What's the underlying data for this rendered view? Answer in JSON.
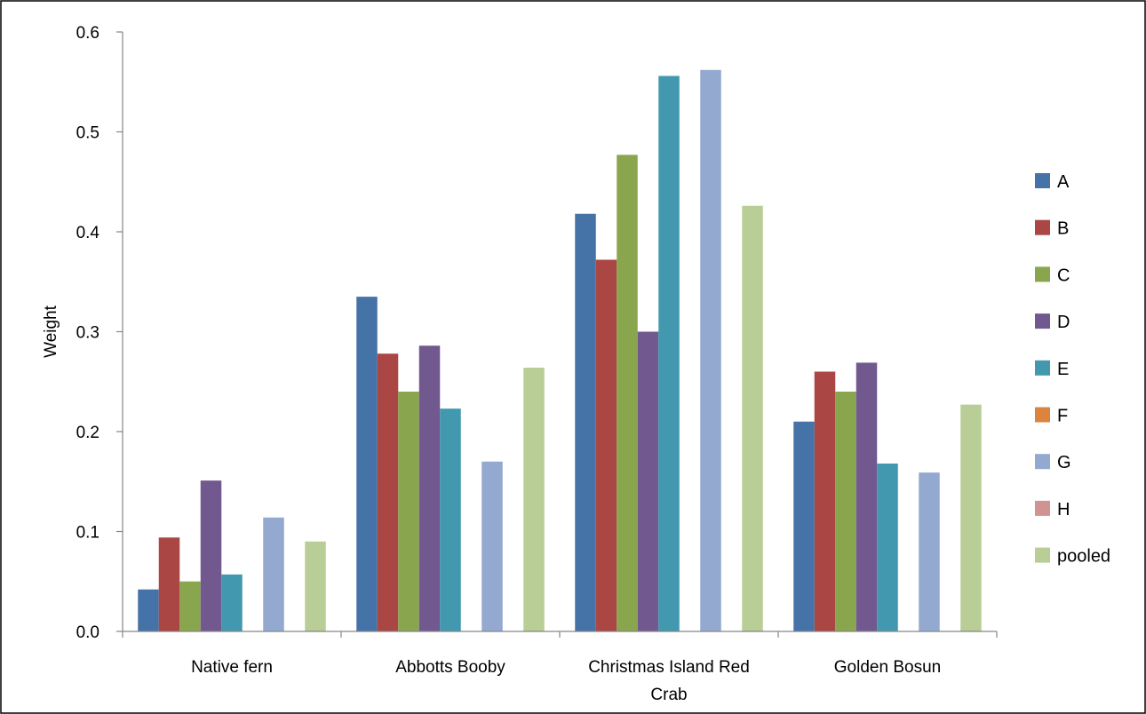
{
  "chart_data": {
    "type": "bar",
    "title": "",
    "xlabel": "",
    "ylabel": "Weight",
    "ylim": [
      0,
      0.6
    ],
    "yticks": [
      "0.0",
      "0.1",
      "0.2",
      "0.3",
      "0.4",
      "0.5",
      "0.6"
    ],
    "grid": false,
    "legend_position": "right",
    "categories": [
      "Native fern",
      "Abbotts Booby",
      "Christmas Island Red Crab",
      "Golden Bosun"
    ],
    "category_lines": [
      [
        "Native fern"
      ],
      [
        "Abbotts Booby"
      ],
      [
        "Christmas Island Red",
        "Crab"
      ],
      [
        "Golden Bosun"
      ]
    ],
    "series": [
      {
        "name": "A",
        "color": "#4572A7",
        "values": [
          0.042,
          0.335,
          0.418,
          0.21
        ]
      },
      {
        "name": "B",
        "color": "#AA4643",
        "values": [
          0.094,
          0.278,
          0.372,
          0.26
        ]
      },
      {
        "name": "C",
        "color": "#89A54E",
        "values": [
          0.05,
          0.24,
          0.477,
          0.24
        ]
      },
      {
        "name": "D",
        "color": "#71588F",
        "values": [
          0.151,
          0.286,
          0.3,
          0.269
        ]
      },
      {
        "name": "E",
        "color": "#4198AF",
        "values": [
          0.057,
          0.223,
          0.556,
          0.168
        ]
      },
      {
        "name": "F",
        "color": "#DB843D",
        "values": [
          0,
          0,
          0,
          0
        ]
      },
      {
        "name": "G",
        "color": "#93A9CF",
        "values": [
          0.114,
          0.17,
          0.562,
          0.159
        ]
      },
      {
        "name": "H",
        "color": "#D19392",
        "values": [
          0,
          0,
          0,
          0
        ]
      },
      {
        "name": "pooled",
        "color": "#B9CD96",
        "values": [
          0.09,
          0.264,
          0.426,
          0.227
        ]
      }
    ]
  }
}
